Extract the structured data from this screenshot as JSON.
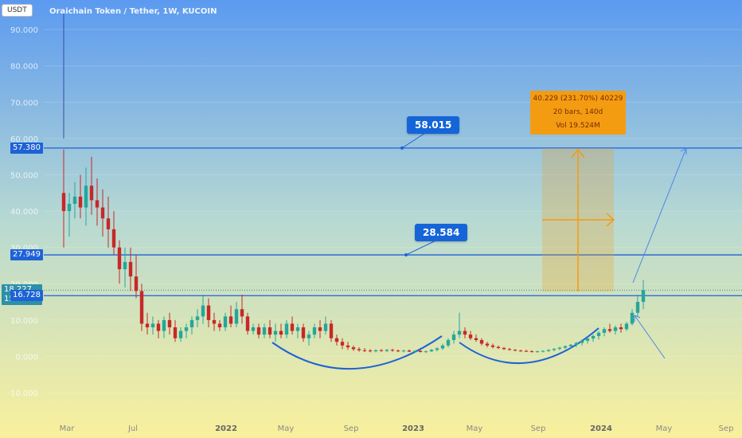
{
  "header": {
    "ticker": "USDT",
    "title": "Oraichain Token / Tether, 1W, KUCOIN"
  },
  "price_labels": {
    "level_top": "57.380",
    "level_mid": "27.949",
    "current_price": "18.227",
    "countdown": "15:13:21",
    "level_low": "16.728"
  },
  "callouts": {
    "upper_target": "58.015",
    "mid_target": "28.584"
  },
  "measure": {
    "line1": "40.229 (231.70%) 40229",
    "line2": "20 bars, 140d",
    "line3": "Vol 19.524M"
  },
  "colors": {
    "bg_top": "#5b9af0",
    "bg_bottom": "#f7ef9f",
    "up": "#26a69a",
    "down": "#c62828",
    "level_line": "#1e62d6",
    "measure_fill": "#f39c12",
    "current_price_badge": "#2e8fa8"
  },
  "chart_data": {
    "type": "candlestick",
    "title": "Oraichain Token / Tether, 1W, KUCOIN",
    "y_ticks": [
      "90.000",
      "80.000",
      "70.000",
      "60.000",
      "50.000",
      "40.000",
      "30.000",
      "20.000",
      "10.000",
      "0.000",
      "-10.000"
    ],
    "x_ticks": [
      "Mar",
      "Jul",
      "2022",
      "May",
      "Sep",
      "2023",
      "May",
      "Sep",
      "2024",
      "May",
      "Sep"
    ],
    "ylim": [
      -20,
      97
    ],
    "horizontal_levels": [
      57.38,
      27.949,
      16.728
    ],
    "current_price": 18.227,
    "targets": [
      58.015,
      28.584
    ],
    "series": [
      {
        "values": [
          [
            45,
            57,
            30,
            40
          ],
          [
            40,
            45,
            33,
            42
          ],
          [
            42,
            48,
            38,
            44
          ],
          [
            44,
            50,
            38,
            41
          ],
          [
            41,
            52,
            36,
            47
          ],
          [
            47,
            55,
            39,
            43
          ],
          [
            43,
            49,
            36,
            41
          ],
          [
            41,
            46,
            33,
            38
          ],
          [
            38,
            44,
            30,
            35
          ],
          [
            35,
            40,
            28,
            30
          ],
          [
            30,
            32,
            20,
            24
          ],
          [
            24,
            30,
            19,
            26
          ],
          [
            26,
            30,
            18,
            22
          ],
          [
            22,
            28,
            16,
            18
          ],
          [
            18,
            20,
            7,
            9
          ],
          [
            9,
            12,
            6,
            8
          ],
          [
            8,
            11,
            6,
            9
          ],
          [
            9,
            10,
            5,
            7
          ],
          [
            7,
            11,
            5,
            10
          ],
          [
            10,
            12,
            6,
            8
          ],
          [
            8,
            10,
            4,
            5
          ],
          [
            5,
            8,
            4,
            7
          ],
          [
            7,
            9,
            5,
            8
          ],
          [
            8,
            11,
            6,
            10
          ],
          [
            10,
            13,
            8,
            11
          ],
          [
            11,
            17,
            9,
            14
          ],
          [
            14,
            16,
            8,
            10
          ],
          [
            10,
            12,
            7,
            9
          ],
          [
            9,
            10,
            7,
            8
          ],
          [
            8,
            12,
            7,
            11
          ],
          [
            11,
            14,
            8,
            9
          ],
          [
            9,
            15,
            8,
            13
          ],
          [
            13,
            17,
            9,
            11
          ],
          [
            11,
            12,
            6,
            7
          ],
          [
            7,
            9,
            6,
            8
          ],
          [
            8,
            9,
            5,
            6
          ],
          [
            6,
            9,
            5,
            8
          ],
          [
            8,
            10,
            5,
            6
          ],
          [
            6,
            9,
            4,
            7
          ],
          [
            7,
            9,
            5,
            6
          ],
          [
            6,
            10,
            5,
            9
          ],
          [
            9,
            11,
            6,
            7
          ],
          [
            7,
            9,
            5,
            8
          ],
          [
            8,
            9,
            4,
            5
          ],
          [
            5,
            7,
            3,
            6
          ],
          [
            6,
            9,
            5,
            8
          ],
          [
            8,
            10,
            5,
            7
          ],
          [
            7,
            11,
            6,
            9
          ],
          [
            9,
            10,
            4,
            5
          ],
          [
            5,
            6,
            3,
            4
          ],
          [
            4,
            5,
            2,
            3
          ],
          [
            3,
            4,
            1.8,
            2.5
          ],
          [
            2.5,
            3,
            1.5,
            2
          ],
          [
            2,
            2.5,
            1.3,
            1.7
          ],
          [
            1.7,
            2.3,
            1.2,
            1.6
          ],
          [
            1.6,
            2,
            1.1,
            1.4
          ],
          [
            1.4,
            1.9,
            1.1,
            1.7
          ],
          [
            1.7,
            2,
            1.3,
            1.5
          ],
          [
            1.5,
            2,
            1.2,
            1.8
          ],
          [
            1.8,
            2.1,
            1.3,
            1.6
          ],
          [
            1.6,
            1.9,
            1.2,
            1.4
          ],
          [
            1.4,
            1.8,
            1.1,
            1.6
          ],
          [
            1.6,
            1.9,
            1.2,
            1.3
          ],
          [
            1.3,
            1.7,
            1,
            1.5
          ],
          [
            1.5,
            1.8,
            1.1,
            1.2
          ],
          [
            1.2,
            1.6,
            0.9,
            1.4
          ],
          [
            1.4,
            2,
            1.2,
            1.8
          ],
          [
            1.8,
            2.5,
            1.4,
            2.2
          ],
          [
            2.2,
            3.5,
            1.8,
            3
          ],
          [
            3,
            5,
            2.5,
            4.5
          ],
          [
            4.5,
            7,
            3.5,
            6
          ],
          [
            6,
            12,
            5,
            7
          ],
          [
            7,
            8,
            5,
            6
          ],
          [
            6,
            7,
            4.5,
            5
          ],
          [
            5,
            6,
            4,
            4.5
          ],
          [
            4.5,
            5,
            3,
            3.5
          ],
          [
            3.5,
            4,
            2.5,
            3
          ],
          [
            3,
            3.5,
            2.2,
            2.6
          ],
          [
            2.6,
            3,
            2,
            2.3
          ],
          [
            2.3,
            2.6,
            1.8,
            2
          ],
          [
            2,
            2.3,
            1.6,
            1.8
          ],
          [
            1.8,
            2,
            1.4,
            1.6
          ],
          [
            1.6,
            1.8,
            1.3,
            1.5
          ],
          [
            1.5,
            1.8,
            1.2,
            1.4
          ],
          [
            1.4,
            1.7,
            1.1,
            1.3
          ],
          [
            1.3,
            1.6,
            1,
            1.4
          ],
          [
            1.4,
            1.7,
            1.1,
            1.5
          ],
          [
            1.5,
            1.9,
            1.2,
            1.8
          ],
          [
            1.8,
            2.2,
            1.4,
            2.1
          ],
          [
            2.1,
            2.6,
            1.7,
            2.4
          ],
          [
            2.4,
            3,
            2,
            2.8
          ],
          [
            2.8,
            3.4,
            2.2,
            3.2
          ],
          [
            3.2,
            4,
            2.6,
            3.7
          ],
          [
            3.7,
            4.6,
            3,
            4.3
          ],
          [
            4.3,
            5.2,
            3.5,
            4.9
          ],
          [
            4.9,
            6,
            4,
            5.6
          ],
          [
            5.6,
            7,
            4.6,
            6.5
          ],
          [
            6.5,
            8,
            5.5,
            7.5
          ],
          [
            7.5,
            9,
            6.5,
            7
          ],
          [
            7,
            8.5,
            6,
            8
          ],
          [
            8,
            9,
            6.5,
            7.5
          ],
          [
            7.5,
            9.5,
            7,
            9
          ],
          [
            9,
            13,
            8.5,
            12
          ],
          [
            12,
            17,
            11,
            15
          ],
          [
            15,
            21,
            13,
            18.227
          ]
        ]
      }
    ]
  }
}
